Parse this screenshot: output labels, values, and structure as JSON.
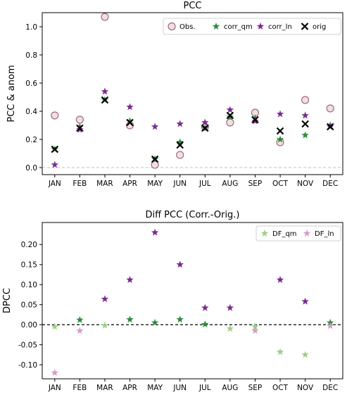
{
  "chart_data": [
    {
      "type": "scatter",
      "title": "PCC",
      "xlabel": "",
      "ylabel": "PCC & anom",
      "categories": [
        "JAN",
        "FEB",
        "MAR",
        "APR",
        "MAY",
        "JUN",
        "JUL",
        "AUG",
        "SEP",
        "OCT",
        "NOV",
        "DEC"
      ],
      "ylim": [
        -0.05,
        1.1
      ],
      "yticks": [
        "0.0",
        "0.2",
        "0.4",
        "0.6",
        "0.8",
        "1.0"
      ],
      "yticks_values": [
        0.0,
        0.2,
        0.4,
        0.6,
        0.8,
        1.0
      ],
      "grid": false,
      "zero_line": true,
      "legend_position": "top-right",
      "series": [
        {
          "name": "Obs.",
          "marker": "circle",
          "color": "#c9a4ad",
          "values": [
            0.37,
            0.34,
            1.07,
            0.3,
            0.02,
            0.09,
            0.29,
            0.32,
            0.39,
            0.18,
            0.48,
            0.42
          ]
        },
        {
          "name": "corr_qm",
          "marker": "star",
          "color": "#2e8b3a",
          "values": [
            0.13,
            0.29,
            0.48,
            0.33,
            0.06,
            0.18,
            0.28,
            0.36,
            0.35,
            0.2,
            0.23,
            0.3
          ]
        },
        {
          "name": "corr_ln",
          "marker": "star",
          "color": "#7b2c8e",
          "values": [
            0.02,
            0.27,
            0.54,
            0.43,
            0.29,
            0.31,
            0.32,
            0.41,
            0.33,
            0.38,
            0.37,
            0.29
          ]
        },
        {
          "name": "orig",
          "marker": "x",
          "color": "#000000",
          "values": [
            0.13,
            0.28,
            0.48,
            0.32,
            0.06,
            0.16,
            0.28,
            0.37,
            0.34,
            0.26,
            0.31,
            0.29
          ]
        }
      ]
    },
    {
      "type": "scatter",
      "title": "Diff PCC (Corr.-Orig.)",
      "xlabel": "",
      "ylabel": "DPCC",
      "categories": [
        "JAN",
        "FEB",
        "MAR",
        "APR",
        "MAY",
        "JUN",
        "JUL",
        "AUG",
        "SEP",
        "OCT",
        "NOV",
        "DEC"
      ],
      "ylim": [
        -0.135,
        0.255
      ],
      "yticks": [
        "-0.10",
        "-0.05",
        "0.00",
        "0.05",
        "0.10",
        "0.15",
        "0.20"
      ],
      "yticks_values": [
        -0.1,
        -0.05,
        0.0,
        0.05,
        0.1,
        0.15,
        0.2
      ],
      "grid": false,
      "zero_line": true,
      "legend_position": "top-right",
      "series": [
        {
          "name": "DF_qm",
          "marker": "star",
          "values": [
            -0.005,
            0.012,
            -0.002,
            0.013,
            0.005,
            0.013,
            0.001,
            -0.01,
            -0.005,
            -0.068,
            -0.075,
            0.005
          ],
          "colors": [
            "#9dd087",
            "#2e8b3a",
            "#9dd087",
            "#2e8b3a",
            "#2e8b3a",
            "#2e8b3a",
            "#2e8b3a",
            "#9dd087",
            "#9dd087",
            "#9dd087",
            "#9dd087",
            "#2e8b3a"
          ]
        },
        {
          "name": "DF_ln",
          "marker": "star",
          "values": [
            -0.12,
            -0.015,
            0.064,
            0.112,
            0.23,
            0.15,
            0.042,
            0.042,
            -0.015,
            0.112,
            0.058,
            -0.003
          ],
          "colors": [
            "#d79bc7",
            "#d79bc7",
            "#7b2c8e",
            "#7b2c8e",
            "#7b2c8e",
            "#7b2c8e",
            "#7b2c8e",
            "#7b2c8e",
            "#d79bc7",
            "#7b2c8e",
            "#7b2c8e",
            "#d79bc7"
          ]
        }
      ]
    }
  ],
  "legend_colors": {
    "DF_qm": "#9dd087",
    "DF_ln": "#d79bc7"
  }
}
